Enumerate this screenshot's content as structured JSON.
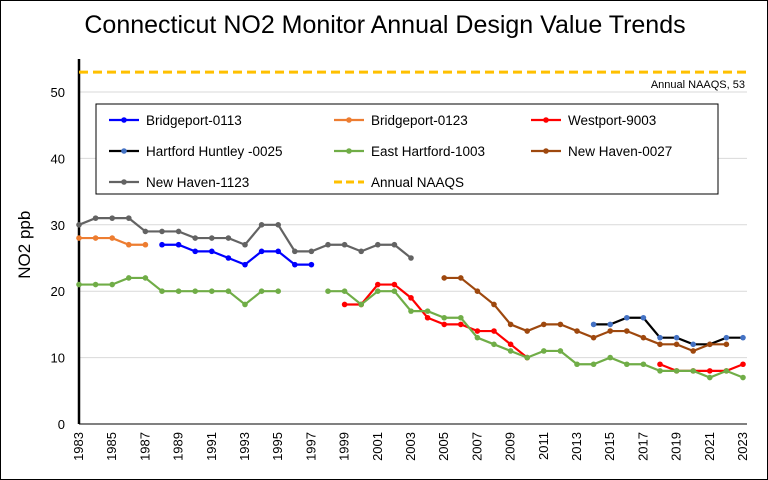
{
  "chart_data": {
    "type": "line",
    "title": "Connecticut NO2 Monitor Annual Design Value Trends",
    "xlabel": "",
    "ylabel": "NO2 ppb",
    "ylim": [
      0,
      55
    ],
    "yticks": [
      0,
      10,
      20,
      30,
      40,
      50
    ],
    "xlim": [
      1983,
      2023
    ],
    "xticks": [
      1983,
      1985,
      1987,
      1989,
      1991,
      1993,
      1995,
      1997,
      1999,
      2001,
      2003,
      2005,
      2007,
      2009,
      2011,
      2013,
      2015,
      2017,
      2019,
      2021,
      2023
    ],
    "grid": "horizontal",
    "legend_position": "top",
    "naaqs_annotation": "Annual NAAQS,  53",
    "series": [
      {
        "name": "Bridgeport-0113",
        "color": "#0000ff",
        "marker": true,
        "points": [
          [
            1988,
            27
          ],
          [
            1989,
            27
          ],
          [
            1990,
            26
          ],
          [
            1991,
            26
          ],
          [
            1992,
            25
          ],
          [
            1993,
            24
          ],
          [
            1994,
            26
          ],
          [
            1995,
            26
          ],
          [
            1996,
            24
          ],
          [
            1997,
            24
          ]
        ]
      },
      {
        "name": "Bridgeport-0123",
        "color": "#ed7d31",
        "marker": true,
        "points": [
          [
            1983,
            28
          ],
          [
            1984,
            28
          ],
          [
            1985,
            28
          ],
          [
            1986,
            27
          ],
          [
            1987,
            27
          ]
        ]
      },
      {
        "name": "Westport-9003",
        "color": "#ff0000",
        "marker": true,
        "segments": [
          [
            [
              1999,
              18
            ],
            [
              2000,
              18
            ],
            [
              2001,
              21
            ],
            [
              2002,
              21
            ],
            [
              2003,
              19
            ],
            [
              2004,
              16
            ],
            [
              2005,
              15
            ],
            [
              2006,
              15
            ],
            [
              2007,
              14
            ],
            [
              2008,
              14
            ],
            [
              2009,
              12
            ],
            [
              2010,
              10
            ]
          ],
          [
            [
              2018,
              9
            ],
            [
              2019,
              8
            ],
            [
              2020,
              8
            ],
            [
              2021,
              8
            ],
            [
              2022,
              8
            ],
            [
              2023,
              9
            ]
          ]
        ]
      },
      {
        "name": "Hartford Huntley -0025",
        "color": "#000000",
        "marker": true,
        "markerColor": "#4472c4",
        "points": [
          [
            2014,
            15
          ],
          [
            2015,
            15
          ],
          [
            2016,
            16
          ],
          [
            2017,
            16
          ],
          [
            2018,
            13
          ],
          [
            2019,
            13
          ],
          [
            2020,
            12
          ],
          [
            2021,
            12
          ],
          [
            2022,
            13
          ],
          [
            2023,
            13
          ]
        ]
      },
      {
        "name": "East Hartford-1003",
        "color": "#70ad47",
        "marker": true,
        "segments": [
          [
            [
              1983,
              21
            ],
            [
              1984,
              21
            ],
            [
              1985,
              21
            ],
            [
              1986,
              22
            ],
            [
              1987,
              22
            ],
            [
              1988,
              20
            ],
            [
              1989,
              20
            ],
            [
              1990,
              20
            ],
            [
              1991,
              20
            ],
            [
              1992,
              20
            ],
            [
              1993,
              18
            ],
            [
              1994,
              20
            ],
            [
              1995,
              20
            ]
          ],
          [
            [
              1998,
              20
            ],
            [
              1999,
              20
            ],
            [
              2000,
              18
            ],
            [
              2001,
              20
            ],
            [
              2002,
              20
            ],
            [
              2003,
              17
            ],
            [
              2004,
              17
            ],
            [
              2005,
              16
            ],
            [
              2006,
              16
            ],
            [
              2007,
              13
            ],
            [
              2008,
              12
            ],
            [
              2009,
              11
            ],
            [
              2010,
              10
            ],
            [
              2011,
              11
            ],
            [
              2012,
              11
            ],
            [
              2013,
              9
            ],
            [
              2014,
              9
            ],
            [
              2015,
              10
            ],
            [
              2016,
              9
            ],
            [
              2017,
              9
            ],
            [
              2018,
              8
            ],
            [
              2019,
              8
            ],
            [
              2020,
              8
            ],
            [
              2021,
              7
            ],
            [
              2022,
              8
            ],
            [
              2023,
              7
            ]
          ]
        ]
      },
      {
        "name": "New Haven-0027",
        "color": "#9e480e",
        "marker": true,
        "points": [
          [
            2005,
            22
          ],
          [
            2006,
            22
          ],
          [
            2007,
            20
          ],
          [
            2008,
            18
          ],
          [
            2009,
            15
          ],
          [
            2010,
            14
          ],
          [
            2011,
            15
          ],
          [
            2012,
            15
          ],
          [
            2013,
            14
          ],
          [
            2014,
            13
          ],
          [
            2015,
            14
          ],
          [
            2016,
            14
          ],
          [
            2017,
            13
          ],
          [
            2018,
            12
          ],
          [
            2019,
            12
          ],
          [
            2020,
            11
          ],
          [
            2021,
            12
          ],
          [
            2022,
            12
          ]
        ]
      },
      {
        "name": "New Haven-1123",
        "color": "#636363",
        "marker": true,
        "points": [
          [
            1983,
            30
          ],
          [
            1984,
            31
          ],
          [
            1985,
            31
          ],
          [
            1986,
            31
          ],
          [
            1987,
            29
          ],
          [
            1988,
            29
          ],
          [
            1989,
            29
          ],
          [
            1990,
            28
          ],
          [
            1991,
            28
          ],
          [
            1992,
            28
          ],
          [
            1993,
            27
          ],
          [
            1994,
            30
          ],
          [
            1995,
            30
          ],
          [
            1996,
            26
          ],
          [
            1997,
            26
          ],
          [
            1998,
            27
          ],
          [
            1999,
            27
          ],
          [
            2000,
            26
          ],
          [
            2001,
            27
          ],
          [
            2002,
            27
          ],
          [
            2003,
            25
          ]
        ]
      },
      {
        "name": "Annual NAAQS",
        "color": "#ffc000",
        "dashed": true,
        "marker": false,
        "points": [
          [
            1983,
            53
          ],
          [
            2023,
            53
          ]
        ]
      }
    ]
  }
}
